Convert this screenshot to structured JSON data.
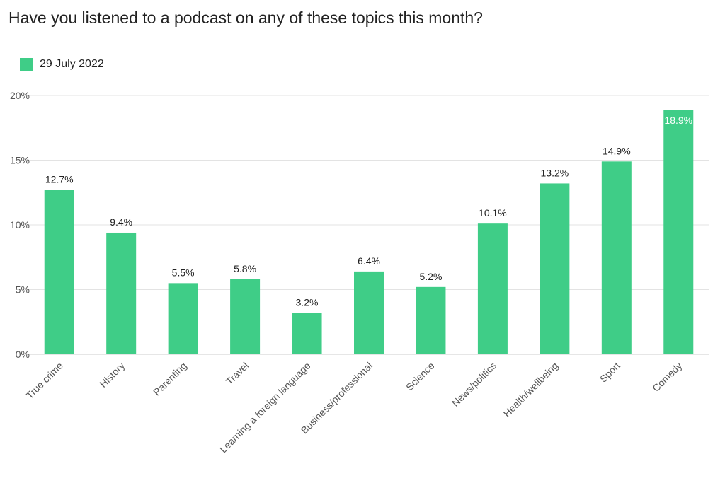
{
  "title": "Have you listened to a podcast on any of these topics this month?",
  "legend": {
    "label": "29 July 2022"
  },
  "colors": {
    "bar": "#3fcd87",
    "grid": "#e3e3e3",
    "axis": "#cccccc"
  },
  "chart_data": {
    "type": "bar",
    "title": "Have you listened to a podcast on any of these topics this month?",
    "xlabel": "",
    "ylabel": "",
    "ylim": [
      0,
      20
    ],
    "yticks": [
      0,
      5,
      10,
      15,
      20
    ],
    "ytick_labels": [
      "0%",
      "5%",
      "10%",
      "15%",
      "20%"
    ],
    "grid": true,
    "legend_position": "top-left",
    "categories": [
      "True crime",
      "History",
      "Parenting",
      "Travel",
      "Learning a foreign language",
      "Business/professional",
      "Science",
      "News/politics",
      "Health/wellbeing",
      "Sport",
      "Comedy"
    ],
    "series": [
      {
        "name": "29 July 2022",
        "values": [
          12.7,
          9.4,
          5.5,
          5.8,
          3.2,
          6.4,
          5.2,
          10.1,
          13.2,
          14.9,
          18.9
        ],
        "labels": [
          "12.7%",
          "9.4%",
          "5.5%",
          "5.8%",
          "3.2%",
          "6.4%",
          "5.2%",
          "10.1%",
          "13.2%",
          "14.9%",
          "18.9%"
        ]
      }
    ]
  }
}
